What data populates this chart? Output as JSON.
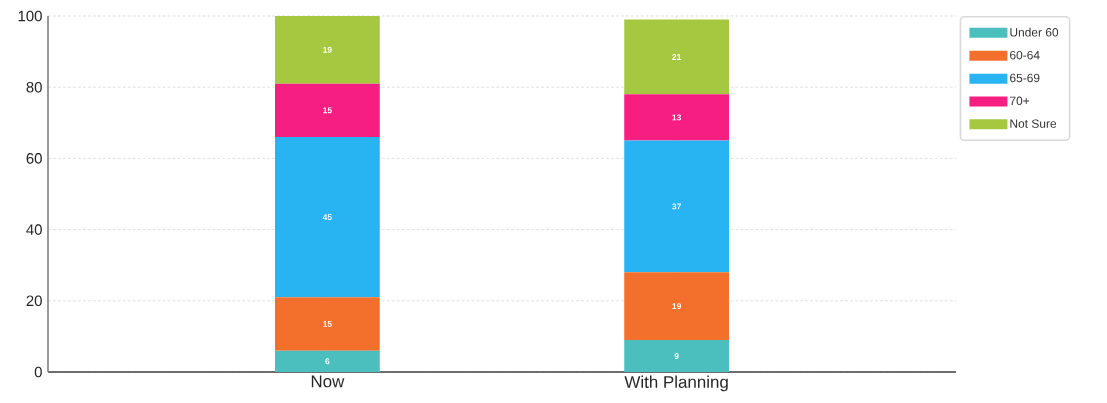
{
  "chart_data": {
    "type": "bar",
    "stacked": true,
    "categories": [
      "Now",
      "With Planning"
    ],
    "series": [
      {
        "name": "Under 60",
        "color": "#4bbebe",
        "values": [
          6,
          9
        ]
      },
      {
        "name": "60-64",
        "color": "#f2702c",
        "values": [
          15,
          19
        ]
      },
      {
        "name": "65-69",
        "color": "#28b3f3",
        "values": [
          45,
          37
        ]
      },
      {
        "name": "70+",
        "color": "#f71e82",
        "values": [
          15,
          13
        ]
      },
      {
        "name": "Not Sure",
        "color": "#a6c840",
        "values": [
          19,
          21
        ]
      }
    ],
    "ylim": [
      0,
      100
    ],
    "yticks": [
      0,
      20,
      40,
      60,
      80,
      100
    ],
    "grid": true,
    "legend": "top right",
    "data_labels": true
  }
}
